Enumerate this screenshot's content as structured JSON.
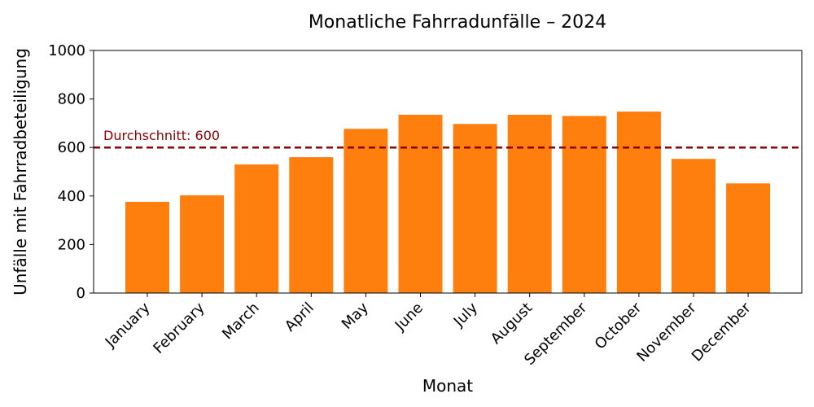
{
  "chart_data": {
    "type": "bar",
    "title": "Monatliche Fahrradunfälle – 2024",
    "xlabel": "Monat",
    "ylabel": "Unfälle mit Fahrradbeteiligung",
    "categories": [
      "January",
      "February",
      "March",
      "April",
      "May",
      "June",
      "July",
      "August",
      "September",
      "October",
      "November",
      "December"
    ],
    "values": [
      376,
      403,
      530,
      560,
      677,
      735,
      697,
      735,
      730,
      748,
      553,
      452
    ],
    "ylim": [
      0,
      1000
    ],
    "yticks": [
      0,
      200,
      400,
      600,
      800,
      1000
    ],
    "grid": false,
    "bar_color": "#ff7f0e",
    "average": {
      "value": 600,
      "label": "Durchschnitt: 600",
      "color": "#8b0000"
    }
  }
}
